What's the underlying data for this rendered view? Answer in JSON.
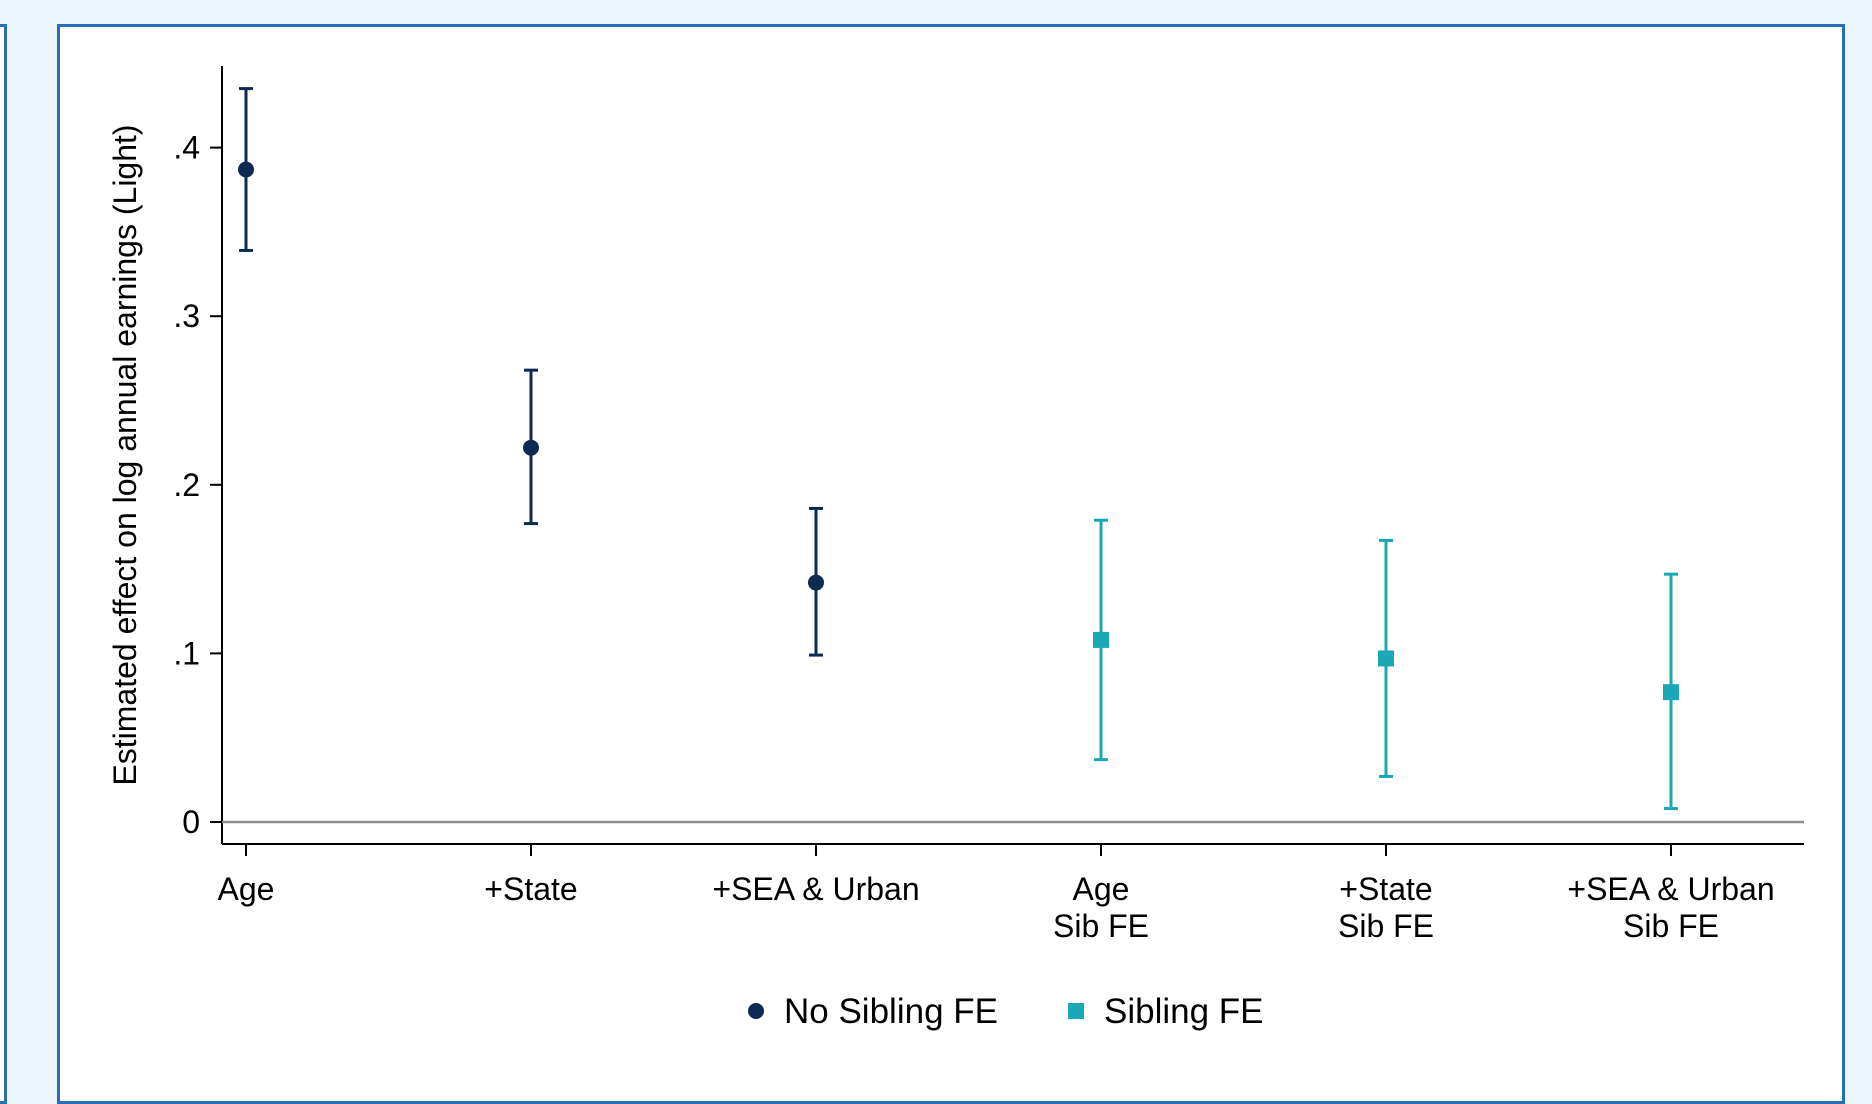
{
  "chart_data": {
    "type": "scatter",
    "subtype": "coefficient-plot-with-95ci",
    "ylabel": "Estimated effect on log annual earnings (Light)",
    "xlabel": "",
    "ylim": [
      0,
      0.44
    ],
    "yticks": [
      {
        "value": 0,
        "label": "0"
      },
      {
        "value": 0.1,
        "label": ".1"
      },
      {
        "value": 0.2,
        "label": ".2"
      },
      {
        "value": 0.3,
        "label": ".3"
      },
      {
        "value": 0.4,
        "label": ".4"
      }
    ],
    "categories": [
      [
        "Age"
      ],
      [
        "+State"
      ],
      [
        "+SEA & Urban"
      ],
      [
        "Age",
        "Sib FE"
      ],
      [
        "+State",
        "Sib FE"
      ],
      [
        "+SEA & Urban",
        "Sib FE"
      ]
    ],
    "series": [
      {
        "name": "No Sibling FE",
        "color": "#0d2a52",
        "marker": "circle",
        "points": [
          {
            "category_index": 0,
            "estimate": 0.387,
            "ci_low": 0.339,
            "ci_high": 0.435
          },
          {
            "category_index": 1,
            "estimate": 0.222,
            "ci_low": 0.177,
            "ci_high": 0.268
          },
          {
            "category_index": 2,
            "estimate": 0.142,
            "ci_low": 0.099,
            "ci_high": 0.186
          }
        ]
      },
      {
        "name": "Sibling FE",
        "color": "#1aa7b6",
        "marker": "square",
        "points": [
          {
            "category_index": 3,
            "estimate": 0.108,
            "ci_low": 0.037,
            "ci_high": 0.179
          },
          {
            "category_index": 4,
            "estimate": 0.097,
            "ci_low": 0.027,
            "ci_high": 0.167
          },
          {
            "category_index": 5,
            "estimate": 0.077,
            "ci_low": 0.008,
            "ci_high": 0.147
          }
        ]
      }
    ],
    "reference_line": {
      "y": 0,
      "color": "#8c8c8c"
    },
    "grid": false,
    "legend_position": "bottom-center"
  }
}
